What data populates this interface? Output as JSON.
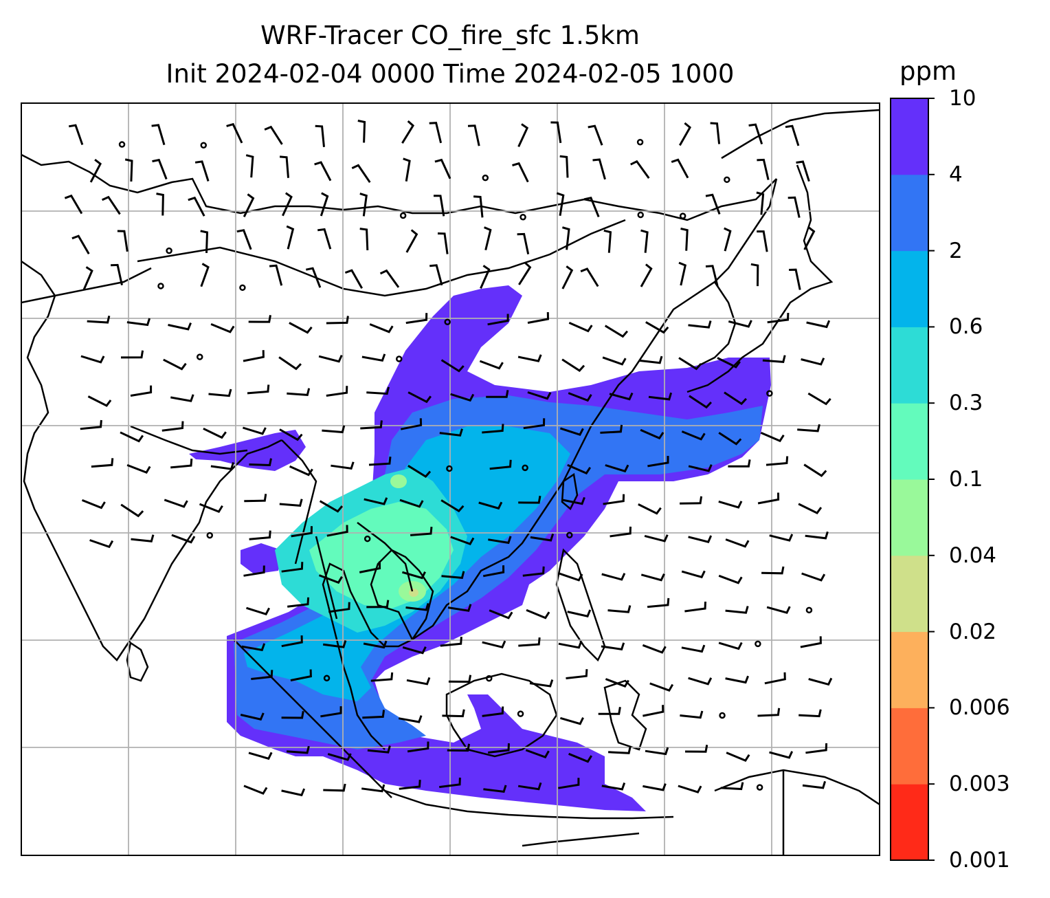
{
  "title": {
    "line1": "WRF-Tracer CO_fire_sfc 1.5km",
    "line2": "Init 2024-02-04 0000 Time 2024-02-05 1000"
  },
  "colorbar": {
    "unit": "ppm",
    "ticks": [
      "10",
      "4",
      "2",
      "0.6",
      "0.3",
      "0.1",
      "0.04",
      "0.02",
      "0.006",
      "0.003",
      "0.001"
    ],
    "colors": [
      "#ff2a18",
      "#ff6d3a",
      "#fdb05c",
      "#cfe08a",
      "#99f99a",
      "#63fbbc",
      "#2ddcd6",
      "#03b4eb",
      "#3275f4",
      "#6430fa"
    ]
  },
  "map": {
    "variable": "CO_fire_sfc",
    "level": "1.5km",
    "features": [
      "coastlines",
      "country-borders",
      "gridlines",
      "wind-barbs",
      "tracer-shading"
    ]
  }
}
